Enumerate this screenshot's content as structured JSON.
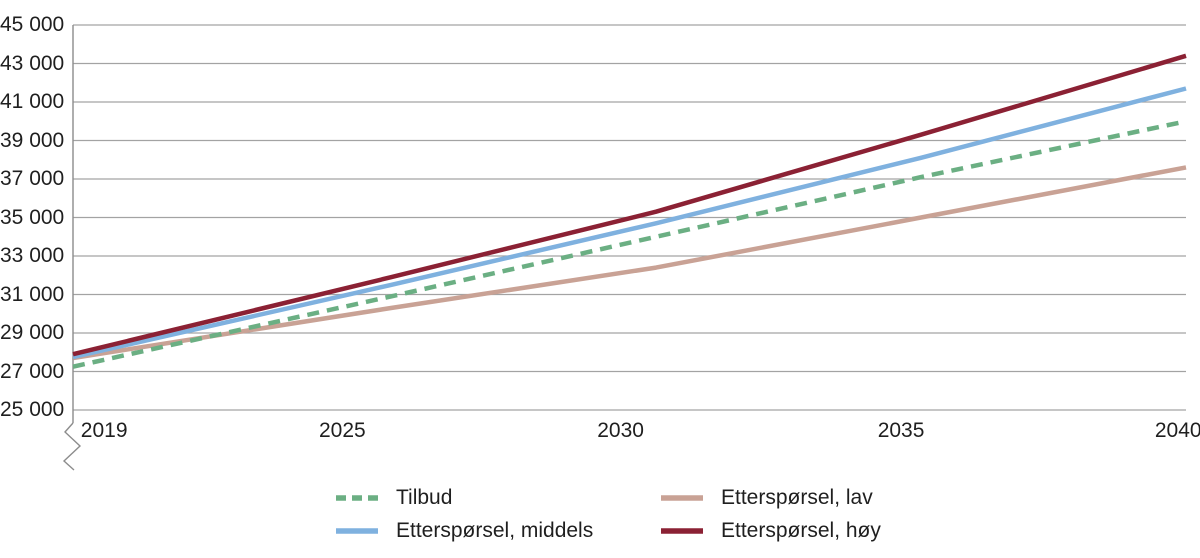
{
  "chart_data": {
    "type": "line",
    "title": "",
    "xlabel": "",
    "ylabel": "",
    "x": [
      2019,
      2025,
      2030,
      2035,
      2040
    ],
    "xlim": [
      2019,
      2040
    ],
    "ylim": [
      25000,
      45000
    ],
    "ytick_step": 2000,
    "ytick_labels": [
      "45 000",
      "43 000",
      "41 000",
      "39 000",
      "37 000",
      "35 000",
      "33 000",
      "31 000",
      "29 000",
      "27 000",
      "25 000"
    ],
    "xtick_labels": [
      "2019",
      "2025",
      "2030",
      "2035",
      "2040"
    ],
    "xtick_positions_pct": [
      2.8,
      24.2,
      49.2,
      74.4,
      99.3
    ],
    "grid": "horizontal-only",
    "y_axis_break": true,
    "axis_color": "#8c8c8c",
    "gridline_color": "#a3a3a3",
    "text_color": "#1f1f1f",
    "series": [
      {
        "name": "Etterspørsel, lav",
        "color": "#C9A295",
        "style": "solid",
        "values": [
          27700,
          30300,
          32400,
          35000,
          37600
        ]
      },
      {
        "name": "Tilbud",
        "color": "#6BAF83",
        "style": "dashed",
        "values": [
          27250,
          30900,
          34000,
          37100,
          40000
        ]
      },
      {
        "name": "Etterspørsel, middels",
        "color": "#7FB1DF",
        "style": "solid",
        "values": [
          27750,
          31500,
          34700,
          38100,
          41700
        ]
      },
      {
        "name": "Etterspørsel, høy",
        "color": "#8B2134",
        "style": "solid",
        "values": [
          27900,
          31900,
          35300,
          39300,
          43400
        ]
      }
    ],
    "legend_position": "bottom",
    "legend_columns": 2,
    "legend_order": [
      "Tilbud",
      "Etterspørsel, lav",
      "Etterspørsel, middels",
      "Etterspørsel, høy"
    ]
  }
}
